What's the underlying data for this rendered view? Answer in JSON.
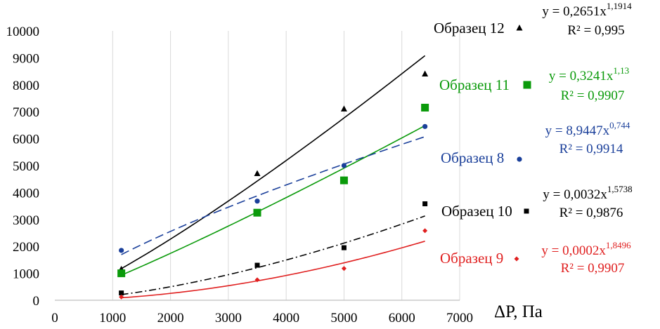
{
  "chart_data": {
    "type": "scatter",
    "xlabel": "ΔP, Па",
    "ylabel": "",
    "xlim": [
      0,
      7000
    ],
    "ylim": [
      0,
      10000
    ],
    "x_ticks": [
      "0",
      "1000",
      "2000",
      "3000",
      "4000",
      "5000",
      "6000",
      "7000"
    ],
    "y_ticks": [
      "0",
      "1000",
      "2000",
      "3000",
      "4000",
      "5000",
      "6000",
      "7000",
      "8000",
      "9000",
      "10000"
    ],
    "grid": "vertical",
    "series": [
      {
        "name": "Образец 12",
        "color": "#000000",
        "marker": "triangle",
        "trend_style": "solid",
        "x": [
          1150,
          3500,
          5000,
          6400
        ],
        "y": [
          1150,
          4700,
          7100,
          8400
        ],
        "trend": {
          "a": 0.2651,
          "b": 1.1914
        },
        "equation": {
          "prefix": "y = 0,2651x",
          "exp": "1,1914",
          "r2": "R² = 0,995"
        }
      },
      {
        "name": "Образец 11",
        "color": "#0a9a0a",
        "marker": "square",
        "trend_style": "solid",
        "x": [
          1150,
          3500,
          5000,
          6400
        ],
        "y": [
          1000,
          3250,
          4450,
          7150
        ],
        "trend": {
          "a": 0.3241,
          "b": 1.13
        },
        "equation": {
          "prefix": "y = 0,3241x",
          "exp": "1,13",
          "r2": "R² = 0,9907"
        }
      },
      {
        "name": "Образец 8",
        "color": "#1a3f9a",
        "marker": "circle",
        "trend_style": "dashed",
        "x": [
          1150,
          3500,
          5000,
          6400
        ],
        "y": [
          1850,
          3680,
          5000,
          6450
        ],
        "trend": {
          "a": 8.9447,
          "b": 0.744
        },
        "equation": {
          "prefix": "y = 8,9447x",
          "exp": "0,744",
          "r2": "R² = 0,9914"
        }
      },
      {
        "name": "Образец 10",
        "color": "#000000",
        "marker": "square-small",
        "trend_style": "dashdot",
        "x": [
          1150,
          3500,
          5000,
          6400
        ],
        "y": [
          270,
          1300,
          1950,
          3580
        ],
        "trend": {
          "a": 0.0032,
          "b": 1.5738
        },
        "equation": {
          "prefix": "y = 0,0032x",
          "exp": "1,5738",
          "r2": "R² = 0,9876"
        }
      },
      {
        "name": "Образец 9",
        "color": "#e02020",
        "marker": "diamond",
        "trend_style": "solid",
        "x": [
          1150,
          3500,
          5000,
          6400
        ],
        "y": [
          120,
          760,
          1180,
          2580
        ],
        "trend": {
          "a": 0.0002,
          "b": 1.8496
        },
        "equation": {
          "prefix": "y = 0,0002x",
          "exp": "1,8496",
          "r2": "R² = 0,9907"
        }
      }
    ]
  }
}
